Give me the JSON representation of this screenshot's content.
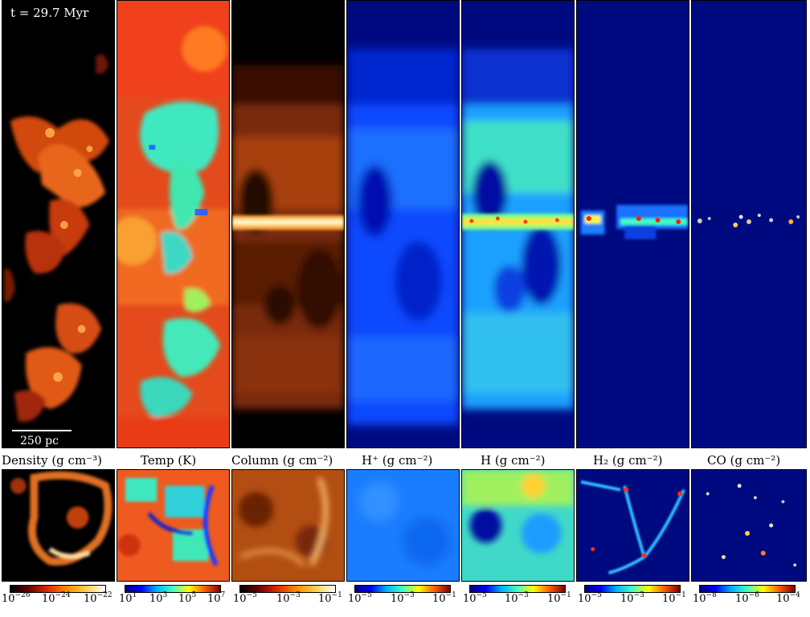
{
  "figure": {
    "time_label": "t = 29.7 Myr",
    "scale_label": "250 pc",
    "panels": [
      {
        "id": "density",
        "title": "Density  (g cm⁻³)",
        "colorbar": "hot",
        "ticks": [
          {
            "base": "10",
            "exp": "−26"
          },
          {
            "base": "10",
            "exp": "−24"
          },
          {
            "base": "10",
            "exp": "−22"
          }
        ]
      },
      {
        "id": "temp",
        "title": "Temp  (K)",
        "colorbar": "jet",
        "ticks": [
          {
            "base": "10",
            "exp": "1"
          },
          {
            "base": "10",
            "exp": "3"
          },
          {
            "base": "10",
            "exp": "5"
          },
          {
            "base": "10",
            "exp": "7"
          }
        ]
      },
      {
        "id": "column",
        "title": "Column  (g cm⁻²)",
        "colorbar": "hot",
        "ticks": [
          {
            "base": "10",
            "exp": "−5"
          },
          {
            "base": "10",
            "exp": "−3"
          },
          {
            "base": "10",
            "exp": "−1"
          }
        ]
      },
      {
        "id": "hplus",
        "title": "H⁺  (g cm⁻²)",
        "colorbar": "jet",
        "ticks": [
          {
            "base": "10",
            "exp": "−5"
          },
          {
            "base": "10",
            "exp": "−3"
          },
          {
            "base": "10",
            "exp": "−1"
          }
        ]
      },
      {
        "id": "h",
        "title": "H  (g cm⁻²)",
        "colorbar": "jet",
        "ticks": [
          {
            "base": "10",
            "exp": "−5"
          },
          {
            "base": "10",
            "exp": "−3"
          },
          {
            "base": "10",
            "exp": "−1"
          }
        ]
      },
      {
        "id": "h2",
        "title": "H₂  (g cm⁻²)",
        "colorbar": "jet",
        "ticks": [
          {
            "base": "10",
            "exp": "−5"
          },
          {
            "base": "10",
            "exp": "−3"
          },
          {
            "base": "10",
            "exp": "−1"
          }
        ]
      },
      {
        "id": "co",
        "title": "CO  (g cm⁻²)",
        "colorbar": "jet",
        "ticks": [
          {
            "base": "10",
            "exp": "−8"
          },
          {
            "base": "10",
            "exp": "−6"
          },
          {
            "base": "10",
            "exp": "−4"
          }
        ]
      }
    ]
  },
  "colors": {
    "background_black": "#000000",
    "deep_blue": "#000a80",
    "hot": [
      "#000000",
      "#700000",
      "#e03000",
      "#ff8c00",
      "#ffd24a",
      "#ffffff"
    ],
    "jet": [
      "#00007f",
      "#0000ff",
      "#00b4ff",
      "#40ffbf",
      "#ffff00",
      "#ff6000",
      "#7f0000"
    ]
  }
}
